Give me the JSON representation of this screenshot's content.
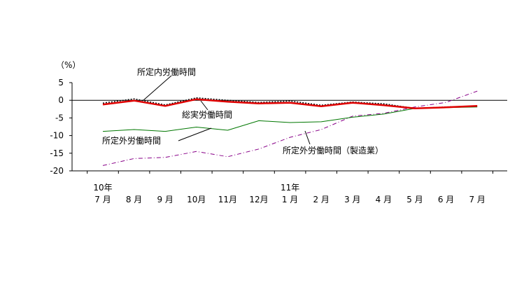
{
  "chart_data": {
    "type": "line",
    "y_unit": "（%）",
    "ylim": [
      -20,
      5
    ],
    "y_ticks": [
      "5",
      "0",
      "-5",
      "-10",
      "-15",
      "-20"
    ],
    "categories": [
      {
        "year": "10年",
        "month": "7 月"
      },
      {
        "year": "",
        "month": "8 月"
      },
      {
        "year": "",
        "month": "9 月"
      },
      {
        "year": "",
        "month": "10月"
      },
      {
        "year": "",
        "month": "11月"
      },
      {
        "year": "",
        "month": "12月"
      },
      {
        "year": "11年",
        "month": "1 月"
      },
      {
        "year": "",
        "month": "2 月"
      },
      {
        "year": "",
        "month": "3 月"
      },
      {
        "year": "",
        "month": "4 月"
      },
      {
        "year": "",
        "month": "5 月"
      },
      {
        "year": "",
        "month": "6 月"
      },
      {
        "year": "",
        "month": "7 月"
      }
    ],
    "series": [
      {
        "name": "総実労働時間",
        "color": "#000000",
        "style": "dotted",
        "values": [
          -0.8,
          0.4,
          -1.3,
          0.7,
          0.0,
          -0.6,
          -0.2,
          -1.4,
          -0.5,
          -1.0,
          -2.3,
          -1.9,
          -1.6
        ]
      },
      {
        "name": "所定内労働時間",
        "color": "#e00000",
        "style": "solid-thick",
        "values": [
          -1.2,
          -0.1,
          -1.6,
          0.3,
          -0.4,
          -0.9,
          -0.7,
          -1.7,
          -0.7,
          -1.4,
          -2.3,
          -2.0,
          -1.6
        ]
      },
      {
        "name": "所定外労働時間",
        "color": "#007700",
        "style": "solid",
        "values": [
          -8.8,
          -8.3,
          -8.8,
          -7.6,
          -8.5,
          -5.8,
          -6.3,
          -6.1,
          -4.8,
          -3.9,
          -2.3,
          -2.1,
          -1.9
        ]
      },
      {
        "name": "所定外労働時間（製造業）",
        "color": "#880088",
        "style": "dash-dot",
        "values": [
          -18.5,
          -16.5,
          -16.2,
          -14.5,
          -16.0,
          -13.8,
          -10.5,
          -8.3,
          -4.5,
          -3.7,
          -1.9,
          -0.6,
          2.6
        ]
      }
    ]
  }
}
